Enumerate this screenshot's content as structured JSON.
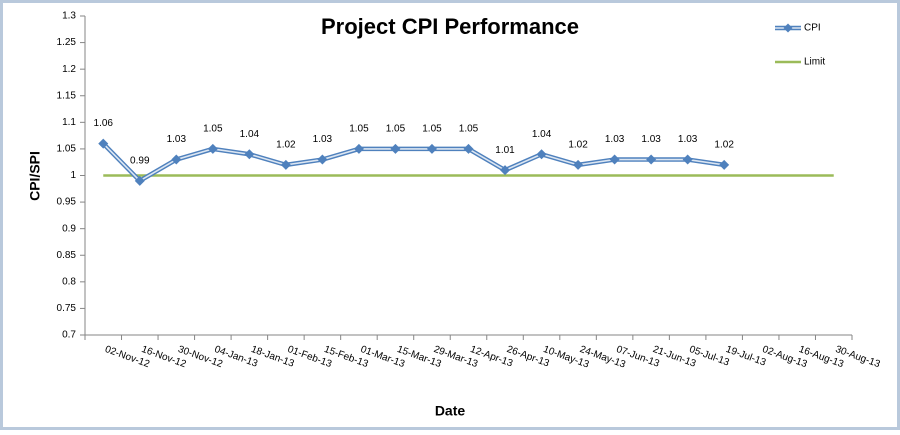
{
  "chart_data": {
    "type": "line",
    "title": "Project CPI Performance",
    "x_label": "Date",
    "y_label": "CPI/SPI",
    "categories": [
      "02-Nov-12",
      "16-Nov-12",
      "30-Nov-12",
      "04-Jan-13",
      "18-Jan-13",
      "01-Feb-13",
      "15-Feb-13",
      "01-Mar-13",
      "15-Mar-13",
      "29-Mar-13",
      "12-Apr-13",
      "26-Apr-13",
      "10-May-13",
      "24-May-13",
      "07-Jun-13",
      "21-Jun-13",
      "05-Jul-13",
      "19-Jul-13",
      "02-Aug-13",
      "16-Aug-13",
      "30-Aug-13"
    ],
    "series": [
      {
        "name": "CPI",
        "color": "#4f81bd",
        "marker": "diamond",
        "data_labels": true,
        "values": [
          1.06,
          0.99,
          1.03,
          1.05,
          1.04,
          1.02,
          1.03,
          1.05,
          1.05,
          1.05,
          1.05,
          1.01,
          1.04,
          1.02,
          1.03,
          1.03,
          1.03,
          1.02,
          null,
          null,
          null
        ]
      },
      {
        "name": "Limit",
        "color": "#9bbb59",
        "marker": "none",
        "data_labels": false,
        "values": [
          1,
          1,
          1,
          1,
          1,
          1,
          1,
          1,
          1,
          1,
          1,
          1,
          1,
          1,
          1,
          1,
          1,
          1,
          1,
          1,
          1
        ]
      }
    ],
    "ylim": [
      0.7,
      1.3
    ],
    "yticks": [
      0.7,
      0.75,
      0.8,
      0.85,
      0.9,
      0.95,
      1,
      1.05,
      1.1,
      1.15,
      1.2,
      1.25,
      1.3
    ],
    "grid": false,
    "legend": "top-right"
  }
}
